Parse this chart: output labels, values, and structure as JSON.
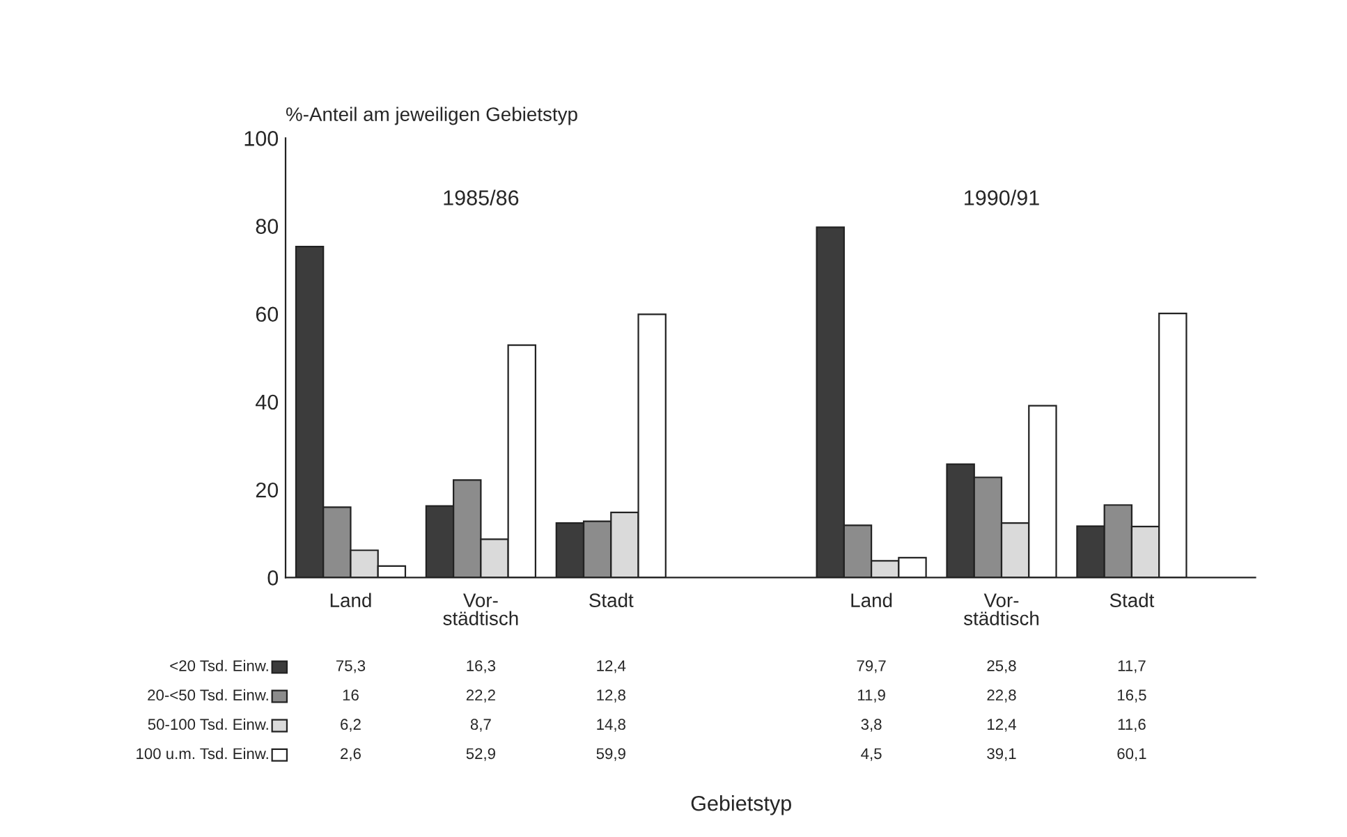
{
  "chart_data": {
    "type": "bar",
    "ylabel": "%-Anteil am jeweiligen Gebietstyp",
    "categories": [
      "Land",
      "Vor-\nstädtisch",
      "Stadt",
      null,
      "Land",
      "Vor-\nstädtisch",
      "Stadt"
    ],
    "series": [
      {
        "name": "<20 Tsd. Einw.",
        "color": "#3c3c3c",
        "values": [
          75.3,
          16.3,
          12.4,
          null,
          79.7,
          25.8,
          11.7
        ],
        "value_labels": [
          "75,3",
          "16,3",
          "12,4",
          null,
          "79,7",
          "25,8",
          "11,7"
        ]
      },
      {
        "name": "20-<50 Tsd. Einw.",
        "color": "#8c8c8c",
        "values": [
          16,
          22.2,
          12.8,
          null,
          11.9,
          22.8,
          16.5
        ],
        "value_labels": [
          "16",
          "22,2",
          "12,8",
          null,
          "11,9",
          "22,8",
          "16,5"
        ]
      },
      {
        "name": "50-100 Tsd. Einw.",
        "color": "#dadada",
        "values": [
          6.2,
          8.7,
          14.8,
          null,
          3.8,
          12.4,
          11.6
        ],
        "value_labels": [
          "6,2",
          "8,7",
          "14,8",
          null,
          "3,8",
          "12,4",
          "11,6"
        ]
      },
      {
        "name": "100 u.m. Tsd. Einw.",
        "color": "#ffffff",
        "values": [
          2.6,
          52.9,
          59.9,
          null,
          4.5,
          39.1,
          60.1
        ],
        "value_labels": [
          "2,6",
          "52,9",
          "59,9",
          null,
          "4,5",
          "39,1",
          "60,1"
        ]
      }
    ],
    "annotations": [
      "1985/86",
      "1990/91",
      "Gebietstyp"
    ],
    "ylim": [
      0,
      100
    ],
    "yticks": [
      0,
      20,
      40,
      60,
      80,
      100
    ],
    "grid": false,
    "legend": "bottom left"
  }
}
